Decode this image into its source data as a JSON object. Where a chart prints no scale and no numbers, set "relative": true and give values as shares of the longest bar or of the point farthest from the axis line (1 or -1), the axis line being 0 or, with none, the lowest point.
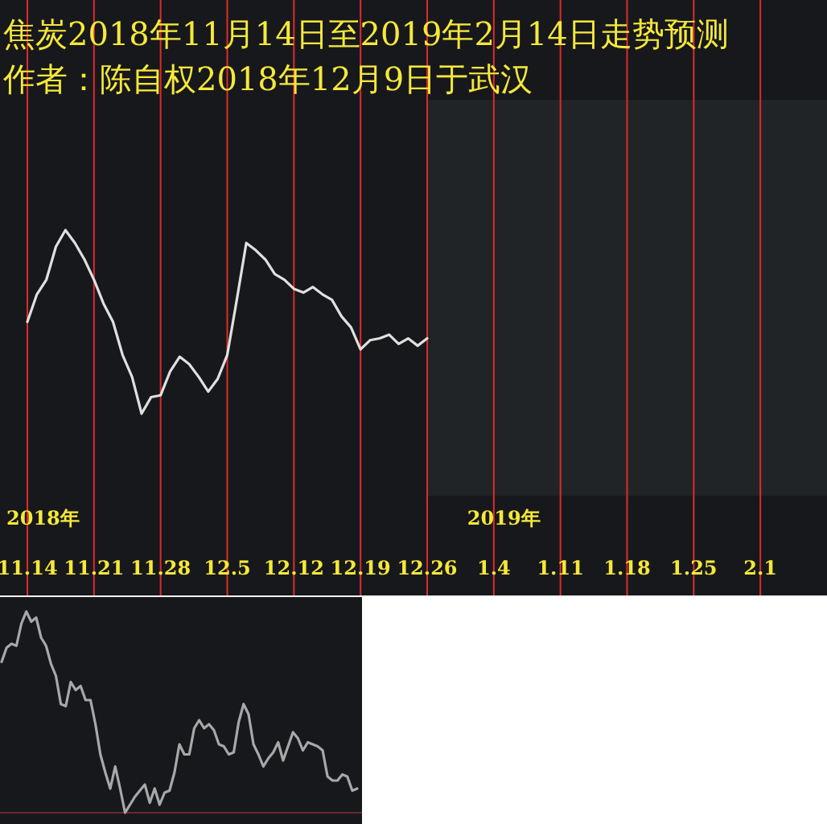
{
  "chart_data": [
    {
      "type": "line",
      "title": "焦炭2018年11月14日至2019年2月14日走势预测",
      "subtitle": "作者：陈自权2018年12月9日于武汉",
      "relative": true,
      "grid": "x",
      "annotations": [
        "2018年",
        "2019年"
      ],
      "categories": [
        "11.14",
        null,
        null,
        null,
        null,
        null,
        null,
        "11.21",
        null,
        null,
        null,
        null,
        null,
        null,
        "11.28",
        null,
        null,
        null,
        null,
        null,
        null,
        "12.5",
        null,
        null,
        null,
        null,
        null,
        null,
        "12.12",
        null,
        null,
        null,
        null,
        null,
        null,
        "12.19",
        null,
        null,
        null,
        null,
        null,
        null,
        "12.26",
        null,
        null,
        null,
        null,
        null,
        null,
        "1.4",
        null,
        null,
        null,
        null,
        null,
        null,
        "1.11",
        null,
        null,
        null,
        null,
        null,
        null,
        "1.18",
        null,
        null,
        null,
        null,
        null,
        null,
        "1.25",
        null,
        null,
        null,
        null,
        null,
        null,
        "2.1",
        null,
        null,
        null,
        null,
        null,
        null
      ],
      "series": [
        {
          "color": "#e0e0e0",
          "values": [
            0.5,
            0.65,
            0.73,
            0.91,
            1.0,
            0.93,
            0.84,
            0.73,
            0.6,
            0.5,
            0.32,
            0.2,
            0.0,
            0.09,
            0.1,
            0.23,
            0.31,
            0.27,
            0.2,
            0.12,
            0.19,
            0.32,
            0.62,
            0.93,
            0.89,
            0.84,
            0.76,
            0.73,
            0.68,
            0.66,
            0.69,
            0.65,
            0.62,
            0.53,
            0.47,
            0.35,
            0.4,
            0.41,
            0.43,
            0.38,
            0.41,
            0.37,
            0.41,
            null,
            null,
            null,
            null,
            null,
            null,
            null,
            null,
            null,
            null,
            null,
            null,
            null,
            null,
            null,
            null,
            null,
            null,
            null,
            null,
            null,
            null,
            null,
            null,
            null,
            null,
            null,
            null,
            null,
            null,
            null,
            null,
            null,
            null,
            null,
            null,
            null,
            null,
            null,
            null,
            null
          ]
        }
      ]
    },
    {
      "type": "line",
      "relative": true,
      "categories": [
        null,
        null,
        null,
        null,
        null,
        null,
        null,
        null,
        null,
        null,
        null,
        null,
        null,
        null,
        null,
        null,
        null,
        null,
        null,
        null,
        null,
        null,
        null,
        null,
        null,
        null,
        null,
        null,
        null,
        null,
        null,
        null,
        null,
        null,
        null,
        null,
        null,
        null,
        null,
        null,
        null,
        null,
        null,
        null,
        null,
        null,
        null,
        null,
        null,
        null,
        null,
        null,
        null,
        null,
        null,
        null,
        null,
        null,
        null,
        null,
        null,
        null,
        null,
        null,
        null,
        null,
        null,
        null,
        null,
        null,
        null,
        null,
        null
      ],
      "series": [
        {
          "color": "#a8a8a8",
          "values": [
            0.75,
            0.82,
            0.84,
            0.83,
            0.94,
            1.0,
            0.95,
            0.97,
            0.87,
            0.83,
            0.74,
            0.68,
            0.54,
            0.53,
            0.65,
            0.61,
            0.63,
            0.56,
            0.56,
            0.44,
            0.29,
            0.2,
            0.12,
            0.23,
            0.12,
            0.0,
            0.04,
            0.08,
            0.11,
            0.14,
            0.05,
            0.12,
            0.04,
            0.1,
            0.11,
            0.2,
            0.34,
            0.29,
            0.29,
            0.42,
            0.46,
            0.42,
            0.44,
            0.41,
            0.34,
            0.33,
            0.29,
            0.3,
            0.45,
            0.54,
            0.49,
            0.34,
            0.29,
            0.23,
            0.27,
            0.3,
            0.35,
            0.26,
            0.33,
            0.4,
            0.37,
            0.31,
            0.35,
            0.34,
            0.33,
            0.31,
            0.18,
            0.16,
            0.16,
            0.19,
            0.18,
            0.11,
            0.12
          ]
        }
      ]
    }
  ]
}
